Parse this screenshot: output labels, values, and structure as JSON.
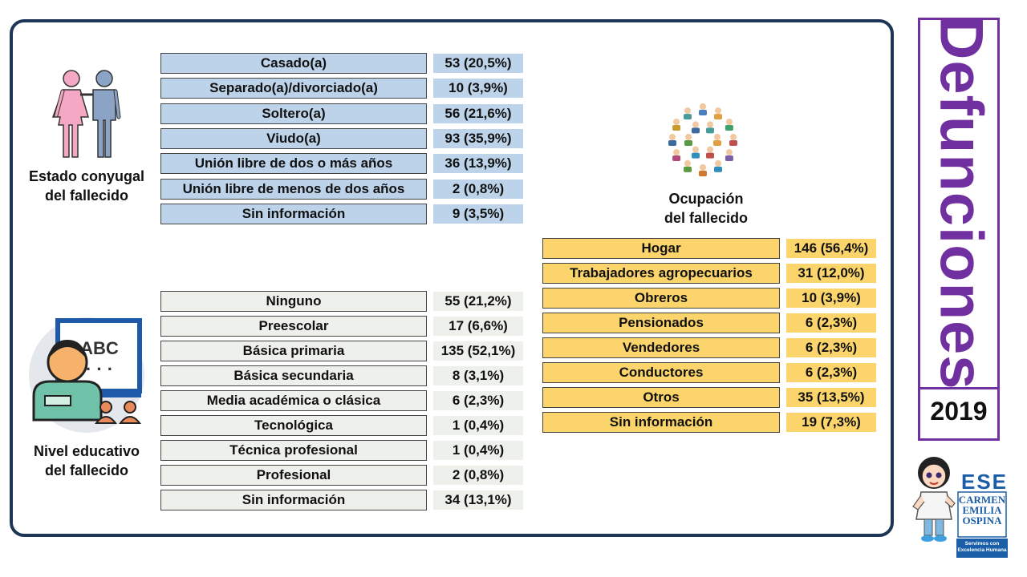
{
  "estado_conyugal": {
    "caption": [
      "Estado conyugal",
      "del fallecido"
    ],
    "rows": [
      {
        "label": "Casado(a)",
        "value": "53 (20,5%)"
      },
      {
        "label": "Separado(a)/divorciado(a)",
        "value": "10 (3,9%)"
      },
      {
        "label": "Soltero(a)",
        "value": "56 (21,6%)"
      },
      {
        "label": "Viudo(a)",
        "value": "93 (35,9%)"
      },
      {
        "label": "Unión libre de dos o más años",
        "value": "36 (13,9%)"
      },
      {
        "label": "Unión libre de menos de dos años",
        "value": "2 (0,8%)"
      },
      {
        "label": "Sin información",
        "value": "9 (3,5%)"
      }
    ]
  },
  "nivel_educativo": {
    "caption": [
      "Nivel educativo",
      "del fallecido"
    ],
    "board_text": "ABC",
    "rows": [
      {
        "label": "Ninguno",
        "value": "55 (21,2%)"
      },
      {
        "label": "Preescolar",
        "value": "17 (6,6%)"
      },
      {
        "label": "Básica primaria",
        "value": "135 (52,1%)"
      },
      {
        "label": "Básica secundaria",
        "value": "8 (3,1%)"
      },
      {
        "label": "Media académica o clásica",
        "value": "6 (2,3%)"
      },
      {
        "label": "Tecnológica",
        "value": "1 (0,4%)"
      },
      {
        "label": "Técnica profesional",
        "value": "1 (0,4%)"
      },
      {
        "label": "Profesional",
        "value": "2 (0,8%)"
      },
      {
        "label": "Sin información",
        "value": "34 (13,1%)"
      }
    ]
  },
  "ocupacion": {
    "caption": [
      "Ocupación",
      "del fallecido"
    ],
    "rows": [
      {
        "label": "Hogar",
        "value": "146 (56,4%)"
      },
      {
        "label": "Trabajadores agropecuarios",
        "value": "31 (12,0%)"
      },
      {
        "label": "Obreros",
        "value": "10 (3,9%)"
      },
      {
        "label": "Pensionados",
        "value": "6 (2,3%)"
      },
      {
        "label": "Vendedores",
        "value": "6 (2,3%)"
      },
      {
        "label": "Conductores",
        "value": "6 (2,3%)"
      },
      {
        "label": "Otros",
        "value": "35 (13,5%)"
      },
      {
        "label": "Sin información",
        "value": "19 (7,3%)"
      }
    ]
  },
  "title": "Defunciones",
  "year": "2019",
  "logo": {
    "name_lines": [
      "CARMEN",
      "EMILIA",
      "OSPINA"
    ],
    "mark": "ESE",
    "slogan_lines": [
      "Servimos con",
      "Excelencia Humana"
    ]
  },
  "colors": {
    "frame": "#1f3556",
    "accent_purple": "#7030a0",
    "estado_fill": "#bcd3ea",
    "nivel_fill": "#eef0ec",
    "ocupacion_fill": "#fbd56b"
  },
  "icons": {
    "estado": "couple-icon",
    "nivel": "teacher-board-icon",
    "ocupacion": "occupations-circle-icon",
    "mascot": "nurse-mascot-icon"
  }
}
